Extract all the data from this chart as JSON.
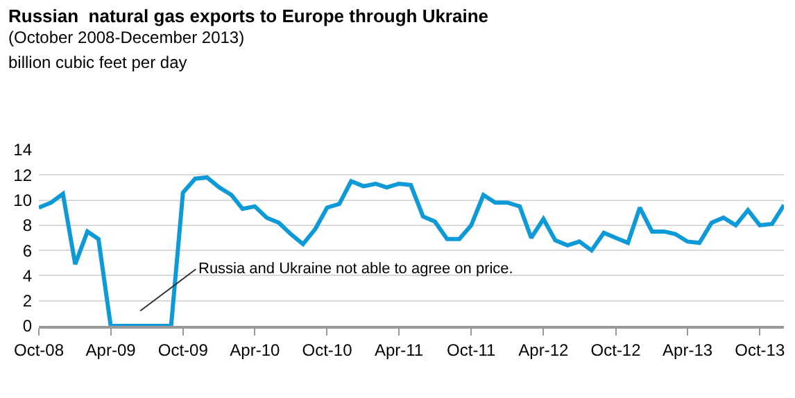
{
  "chart_data": {
    "type": "line",
    "title": "Russian  natural gas exports to Europe through Ukraine",
    "subtitle": "(October 2008-December 2013)",
    "ylabel": "billion cubic feet per day",
    "x": [
      "2008-10",
      "2008-11",
      "2008-12",
      "2009-01",
      "2009-02",
      "2009-03",
      "2009-04",
      "2009-05",
      "2009-06",
      "2009-07",
      "2009-08",
      "2009-09",
      "2009-10",
      "2009-11",
      "2009-12",
      "2010-01",
      "2010-02",
      "2010-03",
      "2010-04",
      "2010-05",
      "2010-06",
      "2010-07",
      "2010-08",
      "2010-09",
      "2010-10",
      "2010-11",
      "2010-12",
      "2011-01",
      "2011-02",
      "2011-03",
      "2011-04",
      "2011-05",
      "2011-06",
      "2011-07",
      "2011-08",
      "2011-09",
      "2011-10",
      "2011-11",
      "2011-12",
      "2012-01",
      "2012-02",
      "2012-03",
      "2012-04",
      "2012-05",
      "2012-06",
      "2012-07",
      "2012-08",
      "2012-09",
      "2012-10",
      "2012-11",
      "2012-12",
      "2013-01",
      "2013-02",
      "2013-03",
      "2013-04",
      "2013-05",
      "2013-06",
      "2013-07",
      "2013-08",
      "2013-09",
      "2013-10",
      "2013-11",
      "2013-12"
    ],
    "series": [
      {
        "color": "#0e9ad7",
        "values": [
          9.4,
          9.8,
          10.5,
          4.9,
          7.5,
          6.9,
          0,
          0,
          0,
          0,
          0,
          0,
          10.6,
          11.7,
          11.8,
          11.0,
          10.4,
          9.3,
          9.5,
          8.6,
          8.2,
          7.3,
          6.5,
          7.7,
          9.4,
          9.7,
          11.5,
          11.1,
          11.3,
          11.0,
          11.3,
          11.2,
          8.7,
          8.3,
          6.9,
          6.9,
          8.0,
          10.4,
          9.8,
          9.8,
          9.5,
          7.0,
          8.5,
          6.8,
          6.4,
          6.7,
          6.0,
          7.4,
          7.0,
          6.6,
          9.4,
          7.5,
          7.5,
          7.3,
          6.7,
          6.6,
          8.2,
          8.6,
          8.0,
          9.2,
          8.0,
          8.1,
          9.6
        ]
      }
    ],
    "xlim": [
      "2008-10",
      "2013-12"
    ],
    "xticks": [
      {
        "value": "2008-10",
        "label": "Oct-08"
      },
      {
        "value": "2009-04",
        "label": "Apr-09"
      },
      {
        "value": "2009-10",
        "label": "Oct-09"
      },
      {
        "value": "2010-04",
        "label": "Apr-10"
      },
      {
        "value": "2010-10",
        "label": "Oct-10"
      },
      {
        "value": "2011-04",
        "label": "Apr-11"
      },
      {
        "value": "2011-10",
        "label": "Oct-11"
      },
      {
        "value": "2012-04",
        "label": "Apr-12"
      },
      {
        "value": "2012-10",
        "label": "Oct-12"
      },
      {
        "value": "2013-04",
        "label": "Apr-13"
      },
      {
        "value": "2013-10",
        "label": "Oct-13"
      }
    ],
    "ylim": [
      0,
      14
    ],
    "yticks": [
      0,
      2,
      4,
      6,
      8,
      10,
      12,
      14
    ],
    "grid": "y",
    "legend": false,
    "marker": "none",
    "line_style": "solid",
    "annotations": [
      "Russia and Ukraine not able to agree on price."
    ]
  }
}
